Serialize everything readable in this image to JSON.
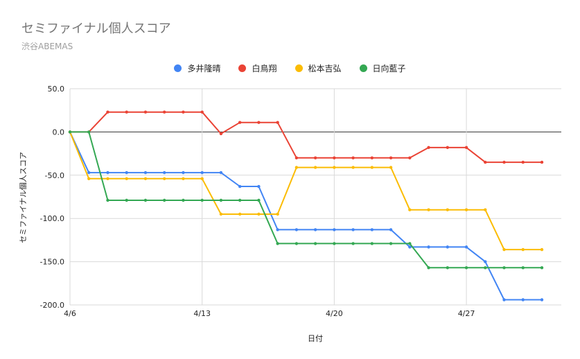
{
  "title": "セミファイナル個人スコア",
  "subtitle": "渋谷ABEMAS",
  "chart_data": {
    "type": "line",
    "xlabel": "日付",
    "ylabel": "セミファイナル個人スコア",
    "ylim": [
      -200,
      50
    ],
    "yticks": [
      50,
      0,
      -50,
      -100,
      -150,
      -200
    ],
    "ytick_labels": [
      "50.0",
      "0.0",
      "-50.0",
      "-100.0",
      "-150.0",
      "-200.0"
    ],
    "xticks": [
      {
        "label": "4/6",
        "index": 0
      },
      {
        "label": "4/13",
        "index": 7
      },
      {
        "label": "4/20",
        "index": 14
      },
      {
        "label": "4/27",
        "index": 21
      }
    ],
    "grid": true,
    "legend_position": "top",
    "n_points": 26,
    "series": [
      {
        "name": "多井隆晴",
        "color": "#4285f4",
        "values": [
          0,
          -47,
          -47,
          -47,
          -47,
          -47,
          -47,
          -47,
          -47,
          -63,
          -63,
          -113,
          -113,
          -113,
          -113,
          -113,
          -113,
          -113,
          -133,
          -133,
          -133,
          -133,
          -150,
          -194,
          -194,
          -194
        ]
      },
      {
        "name": "白鳥翔",
        "color": "#ea4335",
        "values": [
          0,
          0,
          23,
          23,
          23,
          23,
          23,
          23,
          -2,
          11,
          11,
          11,
          -30,
          -30,
          -30,
          -30,
          -30,
          -30,
          -30,
          -18,
          -18,
          -18,
          -35,
          -35,
          -35,
          -35
        ]
      },
      {
        "name": "松本吉弘",
        "color": "#fbbc04",
        "values": [
          0,
          -54,
          -54,
          -54,
          -54,
          -54,
          -54,
          -54,
          -95,
          -95,
          -95,
          -95,
          -41,
          -41,
          -41,
          -41,
          -41,
          -41,
          -90,
          -90,
          -90,
          -90,
          -90,
          -136,
          -136,
          -136
        ]
      },
      {
        "name": "日向藍子",
        "color": "#34a853",
        "values": [
          0,
          0,
          -79,
          -79,
          -79,
          -79,
          -79,
          -79,
          -79,
          -79,
          -79,
          -129,
          -129,
          -129,
          -129,
          -129,
          -129,
          -129,
          -129,
          -157,
          -157,
          -157,
          -157,
          -157,
          -157,
          -157
        ]
      }
    ]
  }
}
